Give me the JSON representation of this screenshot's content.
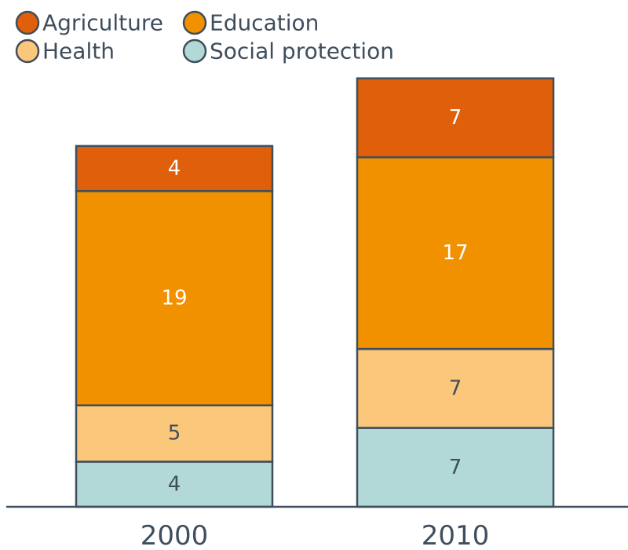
{
  "chart_data": {
    "type": "bar",
    "stacked": true,
    "title": "",
    "xlabel": "",
    "ylabel": "",
    "categories": [
      "2000",
      "2010"
    ],
    "ylim": [
      0,
      38
    ],
    "legend_position": "top-left",
    "series": [
      {
        "name": "Social protection",
        "values": [
          4,
          7
        ],
        "color": "#b2d9d8",
        "label_color": "#3f4e5c"
      },
      {
        "name": "Health",
        "values": [
          5,
          7
        ],
        "color": "#fbc77b",
        "label_color": "#3f4e5c"
      },
      {
        "name": "Education",
        "values": [
          19,
          17
        ],
        "color": "#f29100",
        "label_color": "#ffffff"
      },
      {
        "name": "Agriculture",
        "values": [
          4,
          7
        ],
        "color": "#df5f0b",
        "label_color": "#ffffff"
      }
    ],
    "legend_order": [
      "Agriculture",
      "Education",
      "Health",
      "Social protection"
    ],
    "axis_color": "#3f4e5c"
  }
}
